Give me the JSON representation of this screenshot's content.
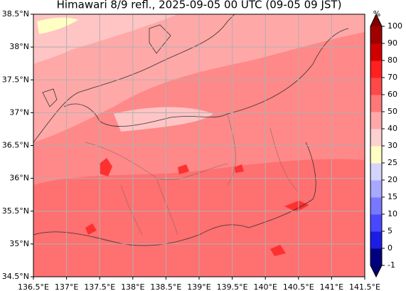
{
  "title": "Himawari 8/9 refl., 2025-09-05 00 UTC (09-05 09 JST)",
  "lon_range": [
    136.5,
    141.5
  ],
  "lat_range": [
    34.5,
    38.5
  ],
  "lon_ticks": [
    {
      "value": 136.5,
      "label": "136.5°E"
    },
    {
      "value": 137,
      "label": "137°E"
    },
    {
      "value": 137.5,
      "label": "137.5°E"
    },
    {
      "value": 138,
      "label": "138°E"
    },
    {
      "value": 138.5,
      "label": "138.5°E"
    },
    {
      "value": 139,
      "label": "139°E"
    },
    {
      "value": 139.5,
      "label": "139.5°E"
    },
    {
      "value": 140,
      "label": "140°E"
    },
    {
      "value": 140.5,
      "label": "140.5°E"
    },
    {
      "value": 141,
      "label": "141°E"
    },
    {
      "value": 141.5,
      "label": "141.5°E"
    }
  ],
  "lat_ticks": [
    {
      "value": 34.5,
      "label": "34.5°N"
    },
    {
      "value": 35,
      "label": "35°N"
    },
    {
      "value": 35.5,
      "label": "35.5°N"
    },
    {
      "value": 36,
      "label": "36°N"
    },
    {
      "value": 36.5,
      "label": "36.5°N"
    },
    {
      "value": 37,
      "label": "37°N"
    },
    {
      "value": 37.5,
      "label": "37.5°N"
    },
    {
      "value": 38,
      "label": "38°N"
    },
    {
      "value": 38.5,
      "label": "38.5°N"
    }
  ],
  "colorbar": {
    "unit": "%",
    "ticks": [
      -1,
      0,
      5,
      10,
      15,
      20,
      25,
      30,
      40,
      50,
      60,
      70,
      80,
      90,
      100
    ],
    "colors": [
      "#00007f",
      "#1c1ce6",
      "#4848ff",
      "#7878ff",
      "#a8a8ff",
      "#d4d4ff",
      "#ffffc4",
      "#ffd0d0",
      "#ffa8a8",
      "#ff7878",
      "#ff4848",
      "#ff2020",
      "#d00000",
      "#a00000"
    ],
    "under_color": "#000070",
    "over_color": "#800000"
  }
}
